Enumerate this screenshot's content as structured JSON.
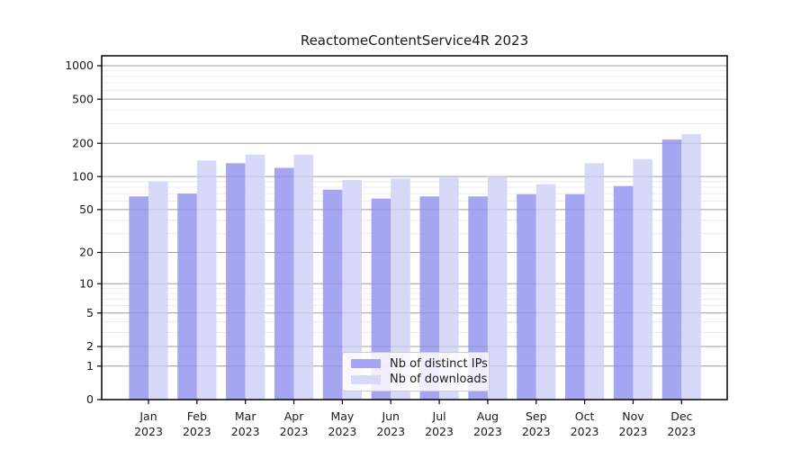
{
  "chart_data": {
    "type": "bar",
    "title": "ReactomeContentService4R 2023",
    "categories": [
      {
        "month": "Jan",
        "year": "2023"
      },
      {
        "month": "Feb",
        "year": "2023"
      },
      {
        "month": "Mar",
        "year": "2023"
      },
      {
        "month": "Apr",
        "year": "2023"
      },
      {
        "month": "May",
        "year": "2023"
      },
      {
        "month": "Jun",
        "year": "2023"
      },
      {
        "month": "Jul",
        "year": "2023"
      },
      {
        "month": "Aug",
        "year": "2023"
      },
      {
        "month": "Sep",
        "year": "2023"
      },
      {
        "month": "Oct",
        "year": "2023"
      },
      {
        "month": "Nov",
        "year": "2023"
      },
      {
        "month": "Dec",
        "year": "2023"
      }
    ],
    "series": [
      {
        "name": "Nb of distinct IPs",
        "color": "#a5a5f1",
        "values": [
          66,
          70,
          132,
          120,
          76,
          63,
          66,
          66,
          69,
          69,
          82,
          216
        ]
      },
      {
        "name": "Nb of downloads",
        "color": "#d8d8f8",
        "values": [
          90,
          140,
          158,
          158,
          93,
          96,
          98,
          101,
          85,
          132,
          144,
          242
        ]
      }
    ],
    "xlabel": "",
    "ylabel": "",
    "y_axis": {
      "scale": "log1p",
      "ticks": [
        0,
        1,
        2,
        5,
        10,
        20,
        50,
        100,
        200,
        500,
        1000
      ],
      "minor_ticks": [
        3,
        4,
        6,
        7,
        8,
        9,
        30,
        40,
        60,
        70,
        80,
        90,
        300,
        400,
        600,
        700,
        800,
        900
      ],
      "ylim": [
        0,
        1230
      ]
    },
    "grid": "on",
    "legend_position": "lower center",
    "colors": {
      "major_grid": "#b0b0b0",
      "minor_grid": "#ececec",
      "axis": "#000000",
      "text": "#1a1a1a",
      "background": "#ffffff"
    }
  }
}
